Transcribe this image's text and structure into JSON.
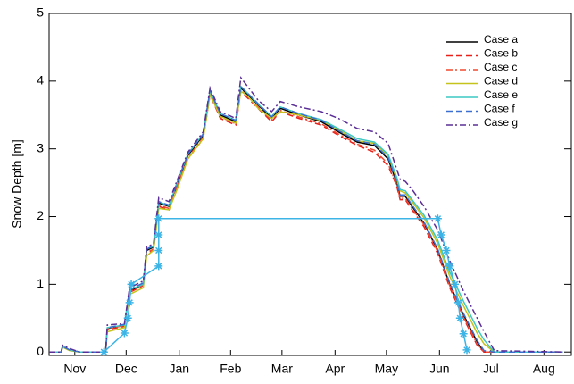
{
  "chart_data": {
    "type": "line",
    "y_label": "Snow Depth [m]",
    "ylim": [
      -0.05,
      5
    ],
    "yticks": [
      0,
      1,
      2,
      3,
      4,
      5
    ],
    "xlim": [
      0,
      305
    ],
    "xticks": [
      {
        "value": 15,
        "label": "Nov"
      },
      {
        "value": 45,
        "label": "Dec"
      },
      {
        "value": 76,
        "label": "Jan"
      },
      {
        "value": 106,
        "label": "Feb"
      },
      {
        "value": 136,
        "label": "Mar"
      },
      {
        "value": 167,
        "label": "Apr"
      },
      {
        "value": 197,
        "label": "May"
      },
      {
        "value": 228,
        "label": "Jun"
      },
      {
        "value": 258,
        "label": "Jul"
      },
      {
        "value": 289,
        "label": "Aug"
      }
    ],
    "legend": "upper right",
    "x": [
      0,
      7,
      8,
      12,
      18,
      33,
      34,
      44,
      47,
      55,
      57,
      61,
      64,
      70,
      75,
      81,
      90,
      94,
      100,
      109,
      112,
      116,
      122,
      130,
      135,
      146,
      159,
      169,
      180,
      190,
      198,
      203,
      205,
      208,
      212,
      219,
      227,
      234,
      242,
      250,
      254,
      260,
      300
    ],
    "series": [
      {
        "name": "Case a",
        "color": "#000000",
        "dash": "solid",
        "values": [
          0,
          0,
          0.08,
          0.03,
          0,
          0,
          0.35,
          0.4,
          0.9,
          1.0,
          1.5,
          1.55,
          2.2,
          2.15,
          2.5,
          2.9,
          3.2,
          3.85,
          3.5,
          3.4,
          3.9,
          3.8,
          3.65,
          3.45,
          3.6,
          3.5,
          3.4,
          3.25,
          3.1,
          3.05,
          2.85,
          2.5,
          2.3,
          2.3,
          2.15,
          1.9,
          1.5,
          1.0,
          0.55,
          0.15,
          0,
          0,
          0
        ]
      },
      {
        "name": "Case b",
        "color": "#e8201a",
        "dash": "dashed",
        "values": [
          0,
          0,
          0.08,
          0.03,
          0,
          0,
          0.33,
          0.38,
          0.88,
          0.98,
          1.45,
          1.5,
          2.15,
          2.1,
          2.45,
          2.85,
          3.15,
          3.8,
          3.45,
          3.35,
          3.85,
          3.75,
          3.6,
          3.4,
          3.55,
          3.45,
          3.35,
          3.2,
          3.05,
          2.95,
          2.75,
          2.45,
          2.25,
          2.25,
          2.1,
          1.85,
          1.45,
          0.95,
          0.5,
          0.1,
          0,
          0,
          0
        ]
      },
      {
        "name": "Case c",
        "color": "#f04a30",
        "dash": "dashdot",
        "values": [
          0,
          0,
          0.08,
          0.03,
          0,
          0,
          0.34,
          0.39,
          0.89,
          0.99,
          1.47,
          1.52,
          2.17,
          2.12,
          2.47,
          2.87,
          3.17,
          3.82,
          3.47,
          3.37,
          3.87,
          3.77,
          3.62,
          3.42,
          3.57,
          3.47,
          3.37,
          3.22,
          3.07,
          2.98,
          2.78,
          2.47,
          2.27,
          2.27,
          2.12,
          1.88,
          1.48,
          0.98,
          0.52,
          0.12,
          0,
          0,
          0
        ]
      },
      {
        "name": "Case d",
        "color": "#c6c41c",
        "dash": "solid",
        "values": [
          0,
          0,
          0.07,
          0.02,
          0,
          0,
          0.3,
          0.36,
          0.85,
          0.95,
          1.42,
          1.5,
          2.12,
          2.1,
          2.42,
          2.85,
          3.15,
          3.8,
          3.48,
          3.38,
          3.85,
          3.78,
          3.6,
          3.45,
          3.55,
          3.5,
          3.42,
          3.28,
          3.12,
          3.08,
          2.9,
          2.55,
          2.38,
          2.35,
          2.22,
          1.98,
          1.6,
          1.12,
          0.68,
          0.28,
          0.12,
          0,
          0
        ]
      },
      {
        "name": "Case e",
        "color": "#3cc8c4",
        "dash": "solid",
        "values": [
          0,
          0,
          0.08,
          0.03,
          0,
          0,
          0.36,
          0.4,
          0.92,
          1.0,
          1.52,
          1.56,
          2.22,
          2.16,
          2.52,
          2.92,
          3.22,
          3.86,
          3.52,
          3.42,
          3.92,
          3.82,
          3.66,
          3.48,
          3.62,
          3.52,
          3.43,
          3.3,
          3.15,
          3.1,
          2.92,
          2.58,
          2.4,
          2.38,
          2.25,
          2.02,
          1.65,
          1.18,
          0.75,
          0.35,
          0.18,
          0,
          0
        ]
      },
      {
        "name": "Case f",
        "color": "#3a6fd0",
        "dash": "dashed",
        "values": [
          0,
          0,
          0.08,
          0.03,
          0,
          0,
          0.36,
          0.41,
          0.92,
          1.02,
          1.52,
          1.57,
          2.22,
          2.17,
          2.52,
          2.92,
          3.22,
          3.87,
          3.52,
          3.42,
          3.92,
          3.82,
          3.67,
          3.47,
          3.62,
          3.52,
          3.42,
          3.27,
          3.12,
          3.07,
          2.87,
          2.52,
          2.32,
          2.32,
          2.17,
          1.92,
          1.52,
          1.02,
          0.57,
          0.17,
          0.02,
          0,
          0
        ]
      },
      {
        "name": "Case g",
        "color": "#5a2e96",
        "dash": "dashdot",
        "values": [
          0,
          0,
          0.1,
          0.05,
          0,
          0,
          0.4,
          0.42,
          0.95,
          1.05,
          1.55,
          1.6,
          2.28,
          2.22,
          2.55,
          2.95,
          3.25,
          3.9,
          3.55,
          3.45,
          4.05,
          3.92,
          3.72,
          3.55,
          3.7,
          3.62,
          3.55,
          3.45,
          3.3,
          3.25,
          3.08,
          2.7,
          2.55,
          2.52,
          2.4,
          2.15,
          1.8,
          1.35,
          0.9,
          0.5,
          0.3,
          0.02,
          0
        ]
      }
    ],
    "observations": {
      "color": "#3cb4e6",
      "x": [
        32,
        44,
        46,
        47,
        48,
        64,
        64,
        64,
        64,
        227,
        229,
        232,
        234,
        237,
        239,
        240,
        242,
        244
      ],
      "values": [
        0,
        0.28,
        0.5,
        0.73,
        1.0,
        1.27,
        1.5,
        1.73,
        1.97,
        1.97,
        1.73,
        1.5,
        1.27,
        1.0,
        0.73,
        0.5,
        0.27,
        0.03
      ]
    }
  }
}
